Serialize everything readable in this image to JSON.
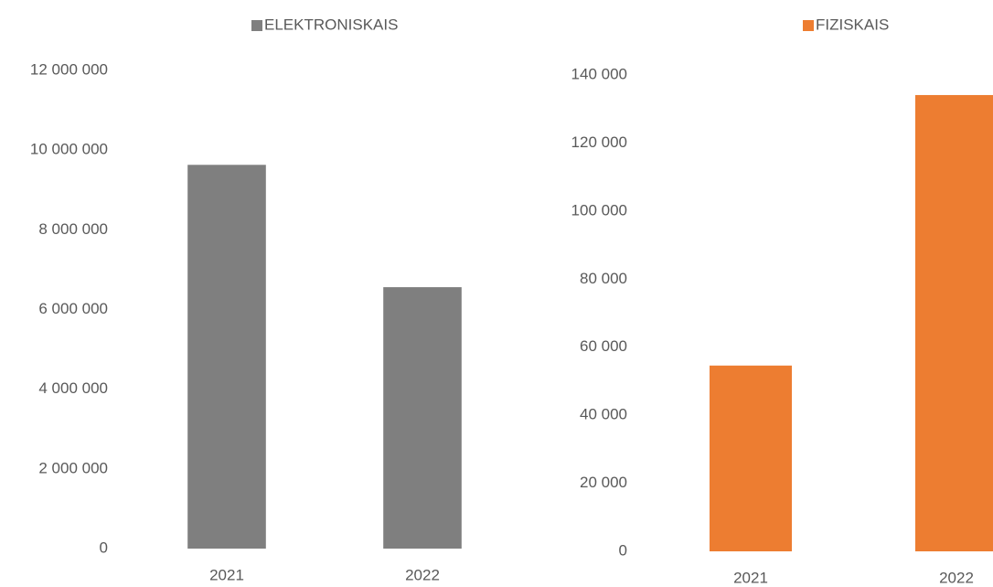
{
  "chart_data": [
    {
      "type": "bar",
      "categories": [
        "2021",
        "2022"
      ],
      "series": [
        {
          "name": "ELEKTRONISKAIS",
          "color": "#7f7f7f",
          "values": [
            9630000,
            6560000
          ]
        }
      ],
      "ylim": [
        0,
        12000000
      ],
      "yticks": [
        0,
        {
          "value": 2000000,
          "label": "2 000 000"
        },
        {
          "value": 4000000,
          "label": "4 000 000"
        },
        {
          "value": 6000000,
          "label": "6 000 000"
        },
        {
          "value": 8000000,
          "label": "8 000 000"
        },
        {
          "value": 10000000,
          "label": "10 000 000"
        },
        {
          "value": 12000000,
          "label": "12 000 000"
        }
      ]
    },
    {
      "type": "bar",
      "categories": [
        "2021",
        "2022"
      ],
      "series": [
        {
          "name": "FIZISKAIS",
          "color": "#ed7d31",
          "values": [
            54600,
            134100
          ]
        }
      ],
      "ylim": [
        0,
        140000
      ],
      "yticks": [
        0,
        {
          "value": 20000,
          "label": "20 000"
        },
        {
          "value": 40000,
          "label": "40 000"
        },
        {
          "value": 60000,
          "label": "60 000"
        },
        {
          "value": 80000,
          "label": "80 000"
        },
        {
          "value": 100000,
          "label": "100 000"
        },
        {
          "value": 120000,
          "label": "120 000"
        },
        {
          "value": 140000,
          "label": "140 000"
        }
      ]
    }
  ]
}
